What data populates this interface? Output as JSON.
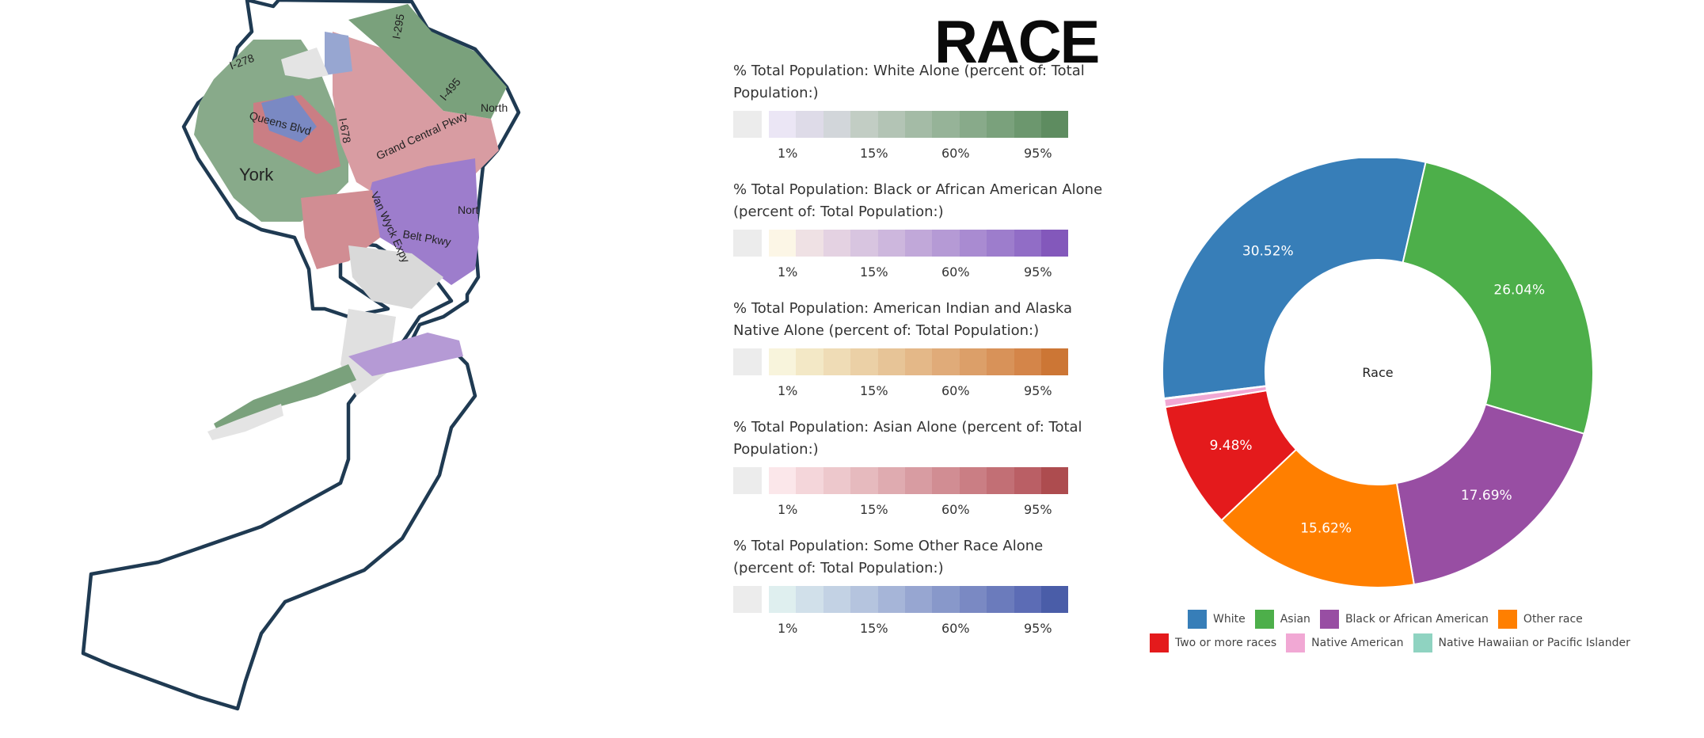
{
  "page": {
    "title": "RACE"
  },
  "map": {
    "labels": [
      "I-278",
      "Queens Blvd",
      "I-678",
      "I-295",
      "I-495",
      "North",
      "Grand Central Pkwy",
      "York",
      "Van Wyck Expy",
      "Nort",
      "Belt Pkwy"
    ]
  },
  "legends": [
    {
      "title": "% Total Population: White Alone (percent of: Total Population:)",
      "colors": [
        "#ebe6f5",
        "#dedbe8",
        "#d2d6da",
        "#c2cdc4",
        "#b3c4b5",
        "#a4bba6",
        "#96b398",
        "#88aa8a",
        "#7aa17c",
        "#6c976e",
        "#5e8c60"
      ],
      "ticks": [
        "1%",
        "15%",
        "60%",
        "95%"
      ]
    },
    {
      "title": "% Total Population: Black or African American Alone (percent of: Total Population:)",
      "colors": [
        "#fcf6e6",
        "#efe1e4",
        "#e4d2e2",
        "#d8c5e0",
        "#cdb7dd",
        "#c1a8d9",
        "#b59ad5",
        "#a98bd1",
        "#9d7dcc",
        "#916dc6",
        "#8358bb"
      ],
      "ticks": [
        "1%",
        "15%",
        "60%",
        "95%"
      ]
    },
    {
      "title": "% Total Population: American Indian and Alaska Native Alone (percent of: Total Population:)",
      "colors": [
        "#f8f4dc",
        "#f3e8c6",
        "#efdcb6",
        "#ebd0a6",
        "#e7c497",
        "#e4b888",
        "#e0ab79",
        "#dc9f69",
        "#d89259",
        "#d48549",
        "#cc7635"
      ],
      "ticks": [
        "1%",
        "15%",
        "60%",
        "95%"
      ]
    },
    {
      "title": "% Total Population: Asian Alone (percent of: Total Population:)",
      "colors": [
        "#fbe7ea",
        "#f4d6da",
        "#edc8cc",
        "#e6babe",
        "#dfabb0",
        "#d89ca2",
        "#d18d93",
        "#ca7e84",
        "#c26f75",
        "#ba5f65",
        "#ad4c4f"
      ],
      "ticks": [
        "1%",
        "15%",
        "60%",
        "95%"
      ]
    },
    {
      "title": "% Total Population: Some Other Race Alone (percent of: Total Population:)",
      "colors": [
        "#dfefef",
        "#d1e0ea",
        "#c3d2e4",
        "#b5c4de",
        "#a6b5d8",
        "#97a6d1",
        "#8898ca",
        "#7a89c3",
        "#6b7bbc",
        "#5c6cb5",
        "#4a5da8"
      ],
      "ticks": [
        "1%",
        "15%",
        "60%",
        "95%"
      ]
    }
  ],
  "chart_data": {
    "type": "pie",
    "center_label": "Race",
    "slices": [
      {
        "name": "White",
        "value": 30.52,
        "label": "30.52%",
        "color": "#377eb8"
      },
      {
        "name": "Asian",
        "value": 26.04,
        "label": "26.04%",
        "color": "#4daf4a"
      },
      {
        "name": "Black or African American",
        "value": 17.69,
        "label": "17.69%",
        "color": "#984ea3"
      },
      {
        "name": "Other race",
        "value": 15.62,
        "label": "15.62%",
        "color": "#ff7f00"
      },
      {
        "name": "Two or more races",
        "value": 9.48,
        "label": "9.48%",
        "color": "#e41a1c"
      },
      {
        "name": "Native American",
        "value": 0.6,
        "label": "",
        "color": "#f1a8d4"
      },
      {
        "name": "Native Hawaiian or Pacific Islander",
        "value": 0.05,
        "label": "",
        "color": "#8fd3c1"
      }
    ],
    "legend_rows": [
      [
        "White",
        "Asian",
        "Black or African American",
        "Other race"
      ],
      [
        "Two or more races",
        "Native American",
        "Native Hawaiian or Pacific Islander"
      ]
    ]
  }
}
